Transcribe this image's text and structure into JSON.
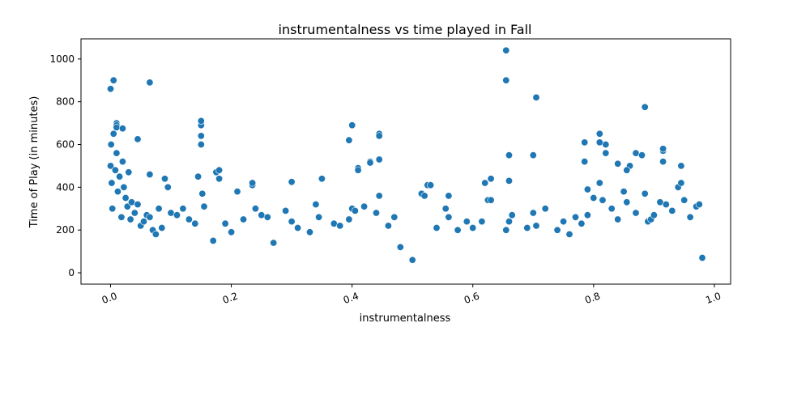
{
  "chart_data": {
    "type": "scatter",
    "title": "instrumentalness vs time played in Fall",
    "xlabel": "instrumentalness",
    "ylabel": "Time of Play (in minutes)",
    "xlim": [
      -0.0489,
      1.0269
    ],
    "ylim": [
      -53,
      1094
    ],
    "xticks": [
      0.0,
      0.2,
      0.4,
      0.6,
      0.8,
      1.0
    ],
    "xtick_labels": [
      "0.0",
      "0.2",
      "0.4",
      "0.6",
      "0.8",
      "1.0"
    ],
    "yticks": [
      0,
      200,
      400,
      600,
      800,
      1000
    ],
    "ytick_labels": [
      "0",
      "200",
      "400",
      "600",
      "800",
      "1000"
    ],
    "grid": false,
    "legend": "none",
    "marker_color": "#1f77b4",
    "marker_edge_color": "#ffffff",
    "x": [
      0.0,
      0.001,
      0.002,
      0.003,
      0.005,
      0.008,
      0.01,
      0.012,
      0.015,
      0.018,
      0.02,
      0.022,
      0.025,
      0.028,
      0.03,
      0.033,
      0.035,
      0.04,
      0.045,
      0.05,
      0.055,
      0.06,
      0.065,
      0.07,
      0.075,
      0.08,
      0.085,
      0.09,
      0.095,
      0.1,
      0.11,
      0.12,
      0.13,
      0.14,
      0.145,
      0.15,
      0.152,
      0.155,
      0.17,
      0.175,
      0.19,
      0.2,
      0.21,
      0.22,
      0.235,
      0.24,
      0.25,
      0.26,
      0.27,
      0.29,
      0.3,
      0.31,
      0.33,
      0.34,
      0.345,
      0.35,
      0.37,
      0.38,
      0.395,
      0.4,
      0.405,
      0.41,
      0.42,
      0.43,
      0.44,
      0.445,
      0.46,
      0.47,
      0.48,
      0.5,
      0.515,
      0.525,
      0.54,
      0.555,
      0.56,
      0.575,
      0.59,
      0.6,
      0.615,
      0.625,
      0.63,
      0.655,
      0.66,
      0.665,
      0.69,
      0.7,
      0.705,
      0.72,
      0.74,
      0.75,
      0.76,
      0.77,
      0.78,
      0.785,
      0.79,
      0.8,
      0.81,
      0.815,
      0.82,
      0.83,
      0.84,
      0.85,
      0.855,
      0.86,
      0.87,
      0.88,
      0.885,
      0.89,
      0.895,
      0.9,
      0.91,
      0.915,
      0.92,
      0.93,
      0.94,
      0.945,
      0.95,
      0.96,
      0.97,
      0.98,
      0.0,
      0.005,
      0.01,
      0.01,
      0.065,
      0.655,
      0.655,
      0.705,
      0.885,
      0.15,
      0.15,
      0.15,
      0.4,
      0.395,
      0.445,
      0.445,
      0.41,
      0.43,
      0.445,
      0.01,
      0.02,
      0.045,
      0.065,
      0.18,
      0.18,
      0.235,
      0.3,
      0.35,
      0.52,
      0.53,
      0.63,
      0.66,
      0.7,
      0.785,
      0.79,
      0.81,
      0.81,
      0.82,
      0.84,
      0.855,
      0.87,
      0.88,
      0.915,
      0.915,
      0.945,
      0.975,
      0.66,
      0.62,
      0.56
    ],
    "y": [
      500,
      600,
      420,
      300,
      650,
      480,
      560,
      380,
      450,
      260,
      520,
      400,
      350,
      310,
      470,
      250,
      330,
      280,
      320,
      220,
      240,
      270,
      260,
      200,
      180,
      300,
      210,
      440,
      400,
      280,
      270,
      300,
      250,
      230,
      450,
      690,
      370,
      310,
      150,
      470,
      230,
      190,
      380,
      250,
      410,
      300,
      270,
      260,
      140,
      290,
      240,
      210,
      190,
      320,
      260,
      440,
      230,
      220,
      250,
      300,
      290,
      490,
      310,
      520,
      280,
      360,
      220,
      260,
      120,
      60,
      370,
      410,
      210,
      300,
      260,
      200,
      240,
      210,
      240,
      340,
      440,
      200,
      240,
      270,
      210,
      280,
      220,
      300,
      200,
      240,
      180,
      260,
      230,
      610,
      270,
      350,
      420,
      340,
      600,
      300,
      250,
      380,
      330,
      500,
      280,
      550,
      370,
      240,
      250,
      270,
      330,
      570,
      320,
      290,
      400,
      420,
      340,
      260,
      310,
      70,
      860,
      900,
      700,
      690,
      890,
      1040,
      900,
      820,
      775,
      710,
      640,
      600,
      690,
      620,
      650,
      530,
      480,
      515,
      640,
      680,
      675,
      625,
      460,
      480,
      440,
      420,
      425,
      440,
      360,
      410,
      340,
      550,
      550,
      520,
      390,
      650,
      610,
      560,
      510,
      480,
      560,
      550,
      520,
      580,
      500,
      320,
      430,
      420,
      360
    ]
  }
}
